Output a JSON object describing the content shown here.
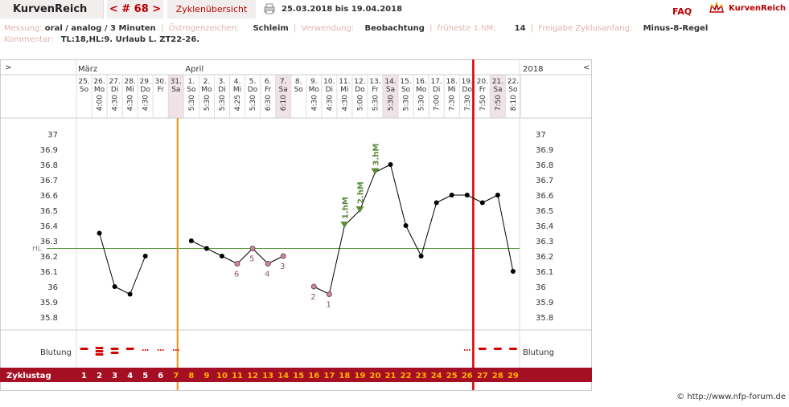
{
  "header": {
    "logo": "KurvenReich",
    "cycle_nav": "< # 68 >",
    "overview_button": "Zyklenübersicht",
    "date_range": "25.03.2018 bis 19.04.2018",
    "faq": "FAQ",
    "brand": "KurvenReich"
  },
  "meta": {
    "measurement_label": "Messung:",
    "measurement_value": "oral / analog / 3 Minuten",
    "estrogen_label": "Östrogenzeichen:",
    "estrogen_value": "Schleim",
    "usage_label": "Verwendung:",
    "usage_value": "Beobachtung",
    "earliest_label": "früheste 1.hM:",
    "earliest_value": "14",
    "release_label": "Freigabe Zyklusanfang:",
    "release_value": "Minus-8-Regel",
    "comment_label": "Kommentar:",
    "comment_value": "TL:18,HL:9.  Urlaub L. ZT22-26."
  },
  "nav": {
    "left_arrow": ">",
    "right_arrow": "<",
    "year": "2018"
  },
  "months": [
    {
      "label": "März",
      "col": 0
    },
    {
      "label": "April",
      "col": 7
    }
  ],
  "days": [
    {
      "d": "25.",
      "wd": "So",
      "time": "",
      "weekend": false
    },
    {
      "d": "26.",
      "wd": "Mo",
      "time": "4:00",
      "weekend": false
    },
    {
      "d": "27.",
      "wd": "Di",
      "time": "4:30",
      "weekend": false
    },
    {
      "d": "28.",
      "wd": "Mi",
      "time": "4:30",
      "weekend": false
    },
    {
      "d": "29.",
      "wd": "Do",
      "time": "4:30",
      "weekend": false
    },
    {
      "d": "30.",
      "wd": "Fr",
      "time": "",
      "weekend": false
    },
    {
      "d": "31.",
      "wd": "Sa",
      "time": "",
      "weekend": true
    },
    {
      "d": "1.",
      "wd": "So",
      "time": "5:30",
      "weekend": false
    },
    {
      "d": "2.",
      "wd": "Mo",
      "time": "5:30",
      "weekend": false
    },
    {
      "d": "3.",
      "wd": "Di",
      "time": "5:30",
      "weekend": false
    },
    {
      "d": "4.",
      "wd": "Mi",
      "time": "4:25",
      "weekend": false
    },
    {
      "d": "5.",
      "wd": "Do",
      "time": "5:30",
      "weekend": false
    },
    {
      "d": "6.",
      "wd": "Fr",
      "time": "6:30",
      "weekend": false
    },
    {
      "d": "7.",
      "wd": "Sa",
      "time": "6:10",
      "weekend": true
    },
    {
      "d": "8.",
      "wd": "So",
      "time": "",
      "weekend": false
    },
    {
      "d": "9.",
      "wd": "Mo",
      "time": "4:30",
      "weekend": false
    },
    {
      "d": "10.",
      "wd": "Di",
      "time": "4:30",
      "weekend": false
    },
    {
      "d": "11.",
      "wd": "Mi",
      "time": "4:30",
      "weekend": false
    },
    {
      "d": "12.",
      "wd": "Do",
      "time": "5:00",
      "weekend": false
    },
    {
      "d": "13.",
      "wd": "Fr",
      "time": "5:30",
      "weekend": false
    },
    {
      "d": "14.",
      "wd": "Sa",
      "time": "5:30",
      "weekend": true
    },
    {
      "d": "15.",
      "wd": "So",
      "time": "5:30",
      "weekend": false
    },
    {
      "d": "16.",
      "wd": "Mo",
      "time": "5:30",
      "weekend": false
    },
    {
      "d": "17.",
      "wd": "Di",
      "time": "7:00",
      "weekend": false
    },
    {
      "d": "18.",
      "wd": "Mi",
      "time": "7:30",
      "weekend": false
    },
    {
      "d": "19.",
      "wd": "Do",
      "time": "7:30",
      "weekend": false
    },
    {
      "d": "20.",
      "wd": "Fr",
      "time": "7:50",
      "weekend": false
    },
    {
      "d": "21.",
      "wd": "Sa",
      "time": "7:50",
      "weekend": true
    },
    {
      "d": "22.",
      "wd": "So",
      "time": "8:10",
      "weekend": false
    }
  ],
  "chart_data": {
    "type": "line",
    "ylabel": "",
    "ylim": [
      35.75,
      37.05
    ],
    "yticks": [
      "37",
      "36.9",
      "36.8",
      "36.7",
      "36.6",
      "36.5",
      "36.4",
      "36.3",
      "36.2",
      "36.1",
      "36",
      "35.9",
      "35.8"
    ],
    "hl_label": "HL",
    "hl_value": 36.25,
    "values": [
      null,
      36.35,
      36.0,
      35.95,
      36.2,
      null,
      null,
      36.3,
      36.25,
      36.2,
      36.15,
      36.25,
      36.15,
      36.2,
      null,
      36.0,
      35.95,
      36.4,
      36.5,
      36.75,
      36.8,
      36.4,
      36.2,
      36.55,
      36.6,
      36.6,
      36.55,
      36.6,
      36.1
    ],
    "low_labels": [
      {
        "col": 10,
        "text": "6",
        "pos": "below"
      },
      {
        "col": 11,
        "text": "5",
        "pos": "below"
      },
      {
        "col": 12,
        "text": "4",
        "pos": "below"
      },
      {
        "col": 13,
        "text": "3",
        "pos": "below"
      },
      {
        "col": 15,
        "text": "2",
        "pos": "below"
      },
      {
        "col": 16,
        "text": "1",
        "pos": "below"
      }
    ],
    "high_marks": [
      {
        "col": 17,
        "text": "1.hM"
      },
      {
        "col": 18,
        "text": "2.hM"
      },
      {
        "col": 19,
        "text": "3.hM"
      }
    ],
    "cover_line_col": 6,
    "ovulation_line_col": 25
  },
  "bleeding": {
    "label": "Blutung",
    "marks": [
      "dash",
      "triple",
      "double",
      "dash",
      "dots",
      "dots",
      "dots",
      "",
      "",
      "",
      "",
      "",
      "",
      "",
      "",
      "",
      "",
      "",
      "",
      "",
      "",
      "",
      "",
      "",
      "",
      "dots",
      "dash",
      "dash",
      "dash"
    ]
  },
  "cycle_days": {
    "label": "Zyklustag",
    "values": [
      "1",
      "2",
      "3",
      "4",
      "5",
      "6",
      "7",
      "8",
      "9",
      "10",
      "11",
      "12",
      "13",
      "14",
      "15",
      "16",
      "17",
      "18",
      "19",
      "20",
      "21",
      "22",
      "23",
      "24",
      "25",
      "26",
      "27",
      "28",
      "29"
    ]
  },
  "footer": "© http://www.nfp-forum.de",
  "colors": {
    "accent": "#b00000",
    "bar": "#a50f23",
    "hl": "#5a9a3a",
    "cover": "#e8901a",
    "ovu": "#d40000",
    "low": "#8a5a5a",
    "high": "#5a8a3a"
  }
}
